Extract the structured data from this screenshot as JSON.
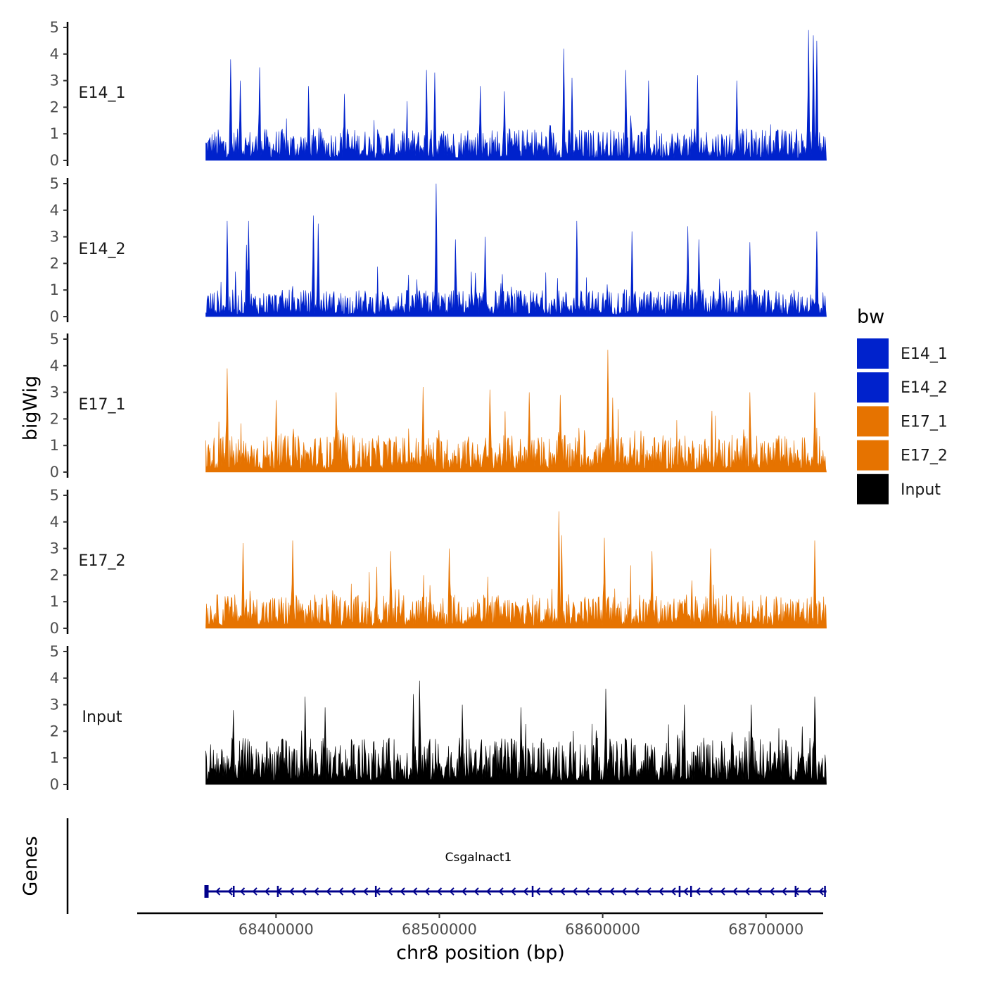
{
  "chart_data": {
    "type": "area",
    "title": "",
    "ylabel": "bigWig",
    "xlabel": "chr8 position (bp)",
    "chromosome": "chr8",
    "xlim": [
      68315000,
      68735000
    ],
    "region": [
      68357000,
      68737000
    ],
    "xticks": [
      68400000,
      68500000,
      68600000,
      68700000
    ],
    "xtick_labels": [
      "68400000",
      "68500000",
      "68600000",
      "68700000"
    ],
    "ylim": [
      0,
      5
    ],
    "yticks": [
      0,
      1,
      2,
      3,
      4,
      5
    ],
    "ytick_labels": [
      "0",
      "1",
      "2",
      "3",
      "4",
      "5"
    ],
    "series": [
      {
        "name": "E14_1",
        "color": "#0022cc",
        "baseline_mean": 0.65,
        "peaks": [
          {
            "x": 68372000,
            "y": 3.8
          },
          {
            "x": 68378000,
            "y": 3.0
          },
          {
            "x": 68390000,
            "y": 3.5
          },
          {
            "x": 68420000,
            "y": 2.8
          },
          {
            "x": 68442000,
            "y": 2.5
          },
          {
            "x": 68492000,
            "y": 3.4
          },
          {
            "x": 68497000,
            "y": 3.3
          },
          {
            "x": 68525000,
            "y": 2.8
          },
          {
            "x": 68540000,
            "y": 2.6
          },
          {
            "x": 68576000,
            "y": 4.2
          },
          {
            "x": 68581000,
            "y": 3.1
          },
          {
            "x": 68614000,
            "y": 3.4
          },
          {
            "x": 68628000,
            "y": 3.0
          },
          {
            "x": 68658000,
            "y": 3.2
          },
          {
            "x": 68682000,
            "y": 3.0
          },
          {
            "x": 68726000,
            "y": 4.9
          },
          {
            "x": 68729000,
            "y": 4.7
          },
          {
            "x": 68731000,
            "y": 4.5
          }
        ]
      },
      {
        "name": "E14_2",
        "color": "#0022cc",
        "baseline_mean": 0.55,
        "peaks": [
          {
            "x": 68370000,
            "y": 3.6
          },
          {
            "x": 68382000,
            "y": 2.7
          },
          {
            "x": 68383000,
            "y": 3.6
          },
          {
            "x": 68423000,
            "y": 3.8
          },
          {
            "x": 68426000,
            "y": 3.5
          },
          {
            "x": 68498000,
            "y": 5.0
          },
          {
            "x": 68510000,
            "y": 2.9
          },
          {
            "x": 68528000,
            "y": 3.0
          },
          {
            "x": 68584000,
            "y": 3.6
          },
          {
            "x": 68618000,
            "y": 3.2
          },
          {
            "x": 68652000,
            "y": 3.4
          },
          {
            "x": 68659000,
            "y": 2.9
          },
          {
            "x": 68690000,
            "y": 2.8
          },
          {
            "x": 68731000,
            "y": 3.2
          }
        ]
      },
      {
        "name": "E17_1",
        "color": "#e67300",
        "baseline_mean": 0.75,
        "peaks": [
          {
            "x": 68370000,
            "y": 3.9
          },
          {
            "x": 68400000,
            "y": 2.7
          },
          {
            "x": 68437000,
            "y": 3.0
          },
          {
            "x": 68490000,
            "y": 3.2
          },
          {
            "x": 68531000,
            "y": 3.1
          },
          {
            "x": 68555000,
            "y": 3.0
          },
          {
            "x": 68574000,
            "y": 2.9
          },
          {
            "x": 68603000,
            "y": 4.6
          },
          {
            "x": 68606000,
            "y": 2.8
          },
          {
            "x": 68690000,
            "y": 3.0
          },
          {
            "x": 68730000,
            "y": 3.0
          }
        ]
      },
      {
        "name": "E17_2",
        "color": "#e67300",
        "baseline_mean": 0.7,
        "peaks": [
          {
            "x": 68380000,
            "y": 3.2
          },
          {
            "x": 68410000,
            "y": 3.3
          },
          {
            "x": 68470000,
            "y": 2.9
          },
          {
            "x": 68506000,
            "y": 3.0
          },
          {
            "x": 68573000,
            "y": 4.4
          },
          {
            "x": 68575000,
            "y": 3.5
          },
          {
            "x": 68601000,
            "y": 3.4
          },
          {
            "x": 68630000,
            "y": 2.9
          },
          {
            "x": 68666000,
            "y": 3.0
          },
          {
            "x": 68730000,
            "y": 3.3
          }
        ]
      },
      {
        "name": "Input",
        "color": "#000000",
        "baseline_mean": 0.95,
        "peaks": [
          {
            "x": 68374000,
            "y": 2.8
          },
          {
            "x": 68418000,
            "y": 3.3
          },
          {
            "x": 68430000,
            "y": 2.9
          },
          {
            "x": 68484000,
            "y": 3.4
          },
          {
            "x": 68488000,
            "y": 3.9
          },
          {
            "x": 68514000,
            "y": 3.0
          },
          {
            "x": 68550000,
            "y": 2.9
          },
          {
            "x": 68602000,
            "y": 3.6
          },
          {
            "x": 68650000,
            "y": 3.0
          },
          {
            "x": 68691000,
            "y": 3.0
          },
          {
            "x": 68730000,
            "y": 3.3
          }
        ]
      }
    ],
    "legend": {
      "title": "bw",
      "position": "right",
      "entries": [
        {
          "label": "E14_1",
          "color": "#0022cc"
        },
        {
          "label": "E14_2",
          "color": "#0022cc"
        },
        {
          "label": "E17_1",
          "color": "#e67300"
        },
        {
          "label": "E17_2",
          "color": "#e67300"
        },
        {
          "label": "Input",
          "color": "#000000"
        }
      ]
    },
    "genes_track": {
      "label": "Genes",
      "gene": {
        "name": "Csgalnact1",
        "start": 68357000,
        "end": 68737000,
        "strand": "-",
        "color": "#00008b"
      }
    }
  }
}
